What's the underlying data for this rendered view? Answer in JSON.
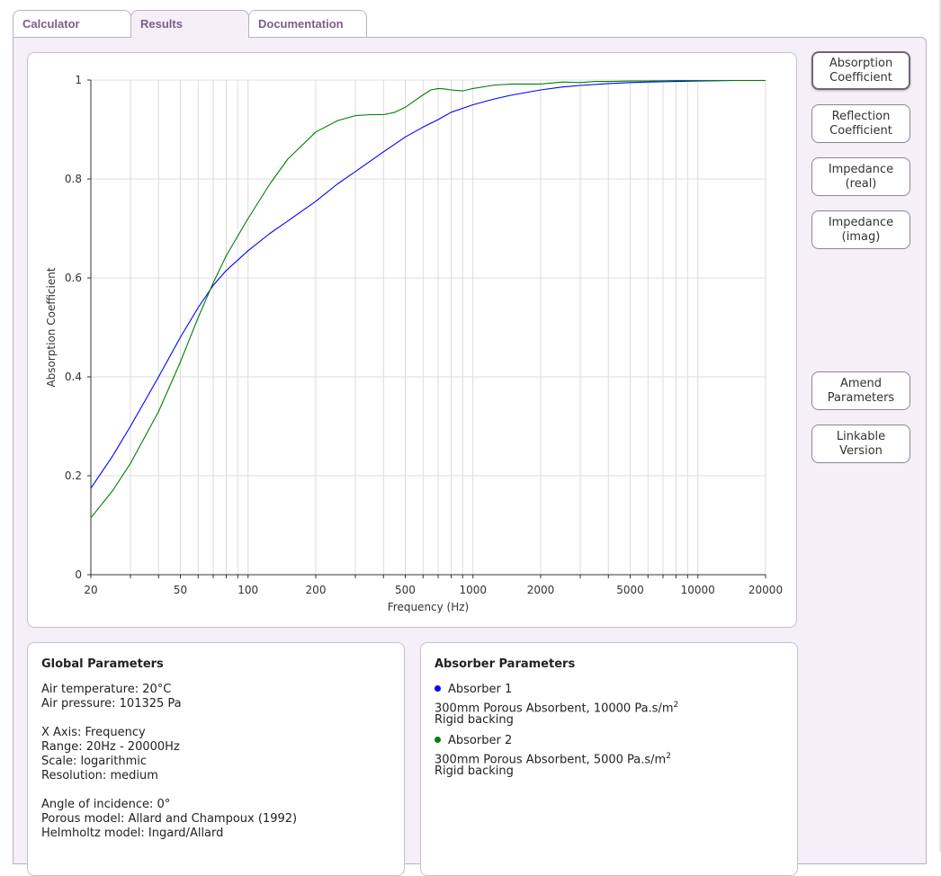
{
  "tabs": [
    {
      "label": "Calculator",
      "active": false
    },
    {
      "label": "Results",
      "active": true
    },
    {
      "label": "Documentation",
      "active": false
    }
  ],
  "side_buttons": {
    "absorption": [
      "Absorption",
      "Coefficient"
    ],
    "reflection": [
      "Reflection",
      "Coefficient"
    ],
    "impedance_real": [
      "Impedance",
      "(real)"
    ],
    "impedance_imag": [
      "Impedance",
      "(imag)"
    ],
    "amend": [
      "Amend",
      "Parameters"
    ],
    "linkable": [
      "Linkable",
      "Version"
    ]
  },
  "global_params": {
    "title": "Global Parameters",
    "air_temperature": "Air temperature: 20°C",
    "air_pressure": "Air pressure: 101325 Pa",
    "x_axis": "X Axis: Frequency",
    "range": "Range: 20Hz - 20000Hz",
    "scale": "Scale: logarithmic",
    "resolution": "Resolution: medium",
    "angle": "Angle of incidence: 0°",
    "porous_model": "Porous model: Allard and Champoux (1992)",
    "helmholtz_model": "Helmholtz model: Ingard/Allard"
  },
  "absorber_params": {
    "title": "Absorber Parameters",
    "absorbers": [
      {
        "name": "Absorber 1",
        "description": "300mm Porous Absorbent, 10000 Pa.s/m",
        "backing": "Rigid backing",
        "color": "#0000ff"
      },
      {
        "name": "Absorber 2",
        "description": "300mm Porous Absorbent, 5000 Pa.s/m",
        "backing": "Rigid backing",
        "color": "#008000"
      }
    ],
    "unit_superscript": "2"
  },
  "chart_data": {
    "type": "line",
    "xlabel": "Frequency (Hz)",
    "ylabel": "Absorption Coefficient",
    "xscale": "log",
    "xlim": [
      20,
      20000
    ],
    "ylim": [
      0,
      1
    ],
    "xticks": [
      20,
      50,
      100,
      200,
      500,
      1000,
      2000,
      5000,
      10000,
      20000
    ],
    "yticks": [
      0,
      0.2,
      0.4,
      0.6,
      0.8,
      1
    ],
    "ytick_labels": [
      "0",
      "0.2",
      "0.4",
      "0.6",
      "0.8",
      "1"
    ],
    "grid": true,
    "series": [
      {
        "color": "#0000ff",
        "x": [
          20,
          25,
          30,
          40,
          50,
          60,
          70,
          80,
          100,
          125,
          150,
          200,
          250,
          300,
          400,
          500,
          600,
          700,
          800,
          1000,
          1250,
          1500,
          2000,
          2500,
          3000,
          4000,
          5000,
          6000,
          8000,
          10000,
          15000,
          20000
        ],
        "y": [
          0.175,
          0.24,
          0.3,
          0.4,
          0.48,
          0.54,
          0.585,
          0.615,
          0.655,
          0.69,
          0.715,
          0.755,
          0.79,
          0.815,
          0.855,
          0.885,
          0.905,
          0.92,
          0.935,
          0.95,
          0.962,
          0.97,
          0.98,
          0.986,
          0.989,
          0.993,
          0.995,
          0.996,
          0.997,
          0.998,
          0.999,
          0.999
        ]
      },
      {
        "color": "#008000",
        "x": [
          20,
          25,
          30,
          40,
          50,
          60,
          70,
          80,
          100,
          125,
          150,
          200,
          250,
          300,
          350,
          400,
          450,
          500,
          550,
          600,
          650,
          700,
          750,
          800,
          900,
          1000,
          1250,
          1500,
          2000,
          2500,
          3000,
          3500,
          4000,
          5000,
          6000,
          8000,
          10000,
          15000,
          20000
        ],
        "y": [
          0.115,
          0.17,
          0.225,
          0.33,
          0.43,
          0.52,
          0.59,
          0.645,
          0.72,
          0.79,
          0.84,
          0.895,
          0.918,
          0.928,
          0.93,
          0.93,
          0.935,
          0.945,
          0.958,
          0.97,
          0.98,
          0.983,
          0.982,
          0.98,
          0.978,
          0.983,
          0.99,
          0.992,
          0.992,
          0.996,
          0.995,
          0.997,
          0.997,
          0.998,
          0.998,
          0.999,
          0.999,
          0.999,
          0.999
        ]
      }
    ]
  }
}
